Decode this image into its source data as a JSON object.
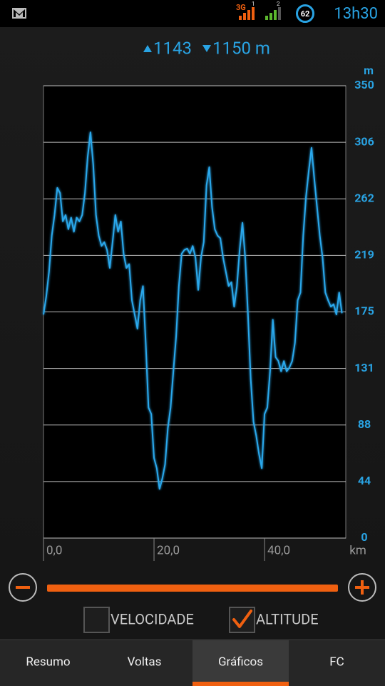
{
  "status_bar": {
    "network": "3G",
    "sim1": "1",
    "sim2": "2",
    "battery": "62",
    "time": "13h30"
  },
  "header": {
    "ascent": "1143",
    "descent": "1150 m"
  },
  "chart_data": {
    "type": "line",
    "y_label": "m",
    "x_label": "km",
    "x": [
      0,
      0.5,
      1,
      1.5,
      2,
      2.5,
      3,
      3.5,
      4,
      4.5,
      5,
      5.5,
      6,
      6.5,
      7,
      7.5,
      8,
      8.5,
      9,
      9.5,
      10,
      10.5,
      11,
      11.5,
      12,
      12.5,
      13,
      13.5,
      14,
      14.5,
      15,
      15.5,
      16,
      16.5,
      17,
      17.5,
      18,
      18.5,
      19,
      19.5,
      20,
      20.5,
      21,
      21.5,
      22,
      22.5,
      23,
      23.5,
      24,
      24.5,
      25,
      25.5,
      26,
      26.5,
      27,
      27.5,
      28,
      28.5,
      29,
      29.5,
      30,
      30.5,
      31,
      31.5,
      32,
      32.5,
      33,
      33.5,
      34,
      34.5,
      35,
      35.5,
      36,
      36.5,
      37,
      37.5,
      38,
      38.5,
      39,
      39.5,
      40,
      40.5,
      41,
      41.5,
      42,
      42.5,
      43,
      43.5,
      44,
      44.5,
      45,
      45.5,
      46,
      46.5,
      47,
      47.5,
      48,
      48.5,
      49,
      49.5,
      50,
      50.5,
      51,
      51.5,
      52,
      52.5,
      53,
      53.5,
      54
    ],
    "series": [
      {
        "color": "#2aa8ec",
        "values": [
          173,
          187,
          206,
          234,
          250,
          271,
          267,
          245,
          250,
          239,
          248,
          237,
          248,
          245,
          250,
          267,
          295,
          314,
          289,
          250,
          234,
          226,
          229,
          223,
          209,
          229,
          250,
          237,
          245,
          220,
          209,
          212,
          184,
          173,
          162,
          184,
          195,
          151,
          101,
          96,
          62,
          54,
          38,
          46,
          57,
          85,
          101,
          129,
          156,
          195,
          220,
          223,
          224,
          220,
          226,
          217,
          192,
          217,
          229,
          273,
          287,
          256,
          239,
          234,
          232,
          217,
          206,
          195,
          198,
          179,
          195,
          223,
          244,
          217,
          173,
          123,
          90,
          79,
          65,
          54,
          96,
          101,
          129,
          169,
          140,
          137,
          129,
          137,
          129,
          132,
          137,
          151,
          184,
          190,
          234,
          264,
          284,
          302,
          278,
          256,
          234,
          217,
          190,
          184,
          179,
          181,
          173,
          190,
          174
        ]
      }
    ],
    "xlim": [
      0,
      54.7
    ],
    "ylim": [
      0,
      350
    ],
    "xticks": [
      {
        "value": 0,
        "label": "0,0"
      },
      {
        "value": 20,
        "label": "20,0"
      },
      {
        "value": 40,
        "label": "40,0"
      }
    ],
    "yticks": [
      0,
      {
        "value": 43.75,
        "label": "44"
      },
      {
        "value": 87.5,
        "label": "88"
      },
      {
        "value": 131.25,
        "label": "131"
      },
      175,
      {
        "value": 218.75,
        "label": "219"
      },
      {
        "value": 262.5,
        "label": "262"
      },
      {
        "value": 306.25,
        "label": "306"
      },
      350
    ],
    "grid": true
  },
  "options": [
    {
      "label": "VELOCIDADE",
      "checked": false
    },
    {
      "label": "ALTITUDE",
      "checked": true
    }
  ],
  "tabs": [
    "Resumo",
    "Voltas",
    "Gráficos",
    "FC"
  ],
  "selected_tab": 2
}
